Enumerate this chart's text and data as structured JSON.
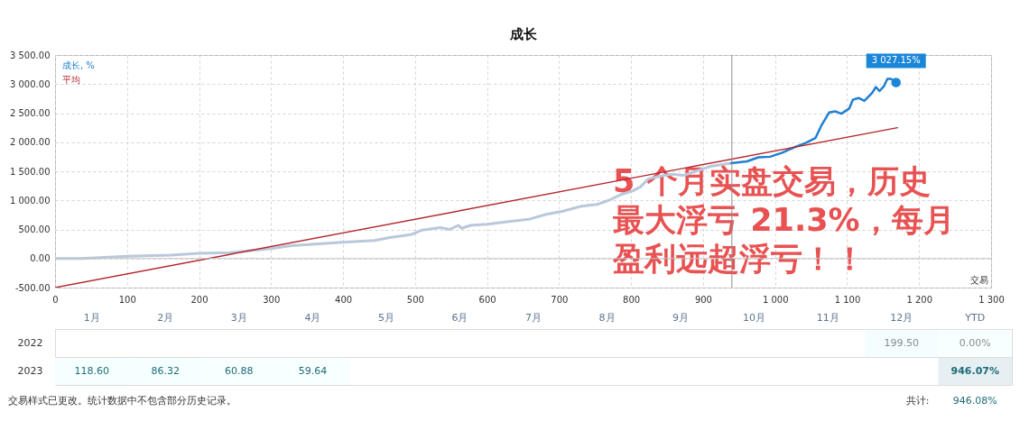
{
  "chart_data": [
    {
      "type": "line",
      "title": "成长",
      "xlabel": "交易",
      "xlim": [
        0,
        1300
      ],
      "ylim": [
        -500,
        3500
      ],
      "xticks": [
        0,
        100,
        200,
        300,
        400,
        500,
        600,
        700,
        800,
        900,
        {
          "value": 1000,
          "label": "1 000"
        },
        {
          "value": 1100,
          "label": "1 100"
        },
        {
          "value": 1200,
          "label": "1 200"
        },
        {
          "value": 1300,
          "label": "1 300"
        }
      ],
      "yticks": [
        {
          "value": -500,
          "label": "-500.00"
        },
        {
          "value": 0,
          "label": "0.00"
        },
        {
          "value": 500,
          "label": "500.00"
        },
        {
          "value": 1000,
          "label": "1 000.00"
        },
        {
          "value": 1500,
          "label": "1 500.00"
        },
        {
          "value": 2000,
          "label": "2 000.00"
        },
        {
          "value": 2500,
          "label": "2 500.00"
        },
        {
          "value": 3000,
          "label": "3 000.00"
        },
        {
          "value": 3500,
          "label": "3 500.00"
        }
      ],
      "grid": true,
      "legend": "top left",
      "line_style": "solid",
      "series": [
        {
          "color": "#b9c8da",
          "x": [
            0,
            37,
            100,
            161,
            200,
            244,
            300,
            328,
            399,
            444,
            465,
            494,
            510,
            535,
            548,
            560,
            565,
            577,
            600,
            633,
            660,
            682,
            704,
            731,
            753,
            769,
            786,
            802,
            813,
            824,
            846,
            857,
            873,
            890,
            912,
            939
          ],
          "values": [
            0,
            0,
            40,
            60,
            90,
            100,
            170,
            220,
            280,
            310,
            360,
            410,
            490,
            530,
            500,
            570,
            520,
            570,
            590,
            640,
            680,
            760,
            810,
            900,
            930,
            1000,
            1100,
            1160,
            1230,
            1370,
            1430,
            1450,
            1430,
            1500,
            1590,
            1640
          ]
        },
        {
          "name": "成长, %",
          "color": "#1f7fd0",
          "x": [
            939,
            961,
            977,
            993,
            1010,
            1026,
            1043,
            1056,
            1064,
            1075,
            1084,
            1092,
            1103,
            1108,
            1116,
            1124,
            1135,
            1140,
            1145,
            1151,
            1156,
            1161,
            1168
          ],
          "values": [
            1640,
            1670,
            1740,
            1750,
            1820,
            1910,
            1990,
            2070,
            2280,
            2510,
            2530,
            2490,
            2580,
            2730,
            2760,
            2710,
            2850,
            2950,
            2880,
            2960,
            3090,
            3090,
            3027.15
          ]
        },
        {
          "name": "平均",
          "type": "line",
          "color": "#b3262c",
          "x": [
            0,
            1170
          ],
          "values": [
            -500,
            2250
          ]
        }
      ],
      "ref_lines": [
        {
          "axis": "x",
          "value": 940,
          "color": "#8c8c8c"
        },
        {
          "axis": "y",
          "value": 0,
          "color": "#c4c4c4"
        }
      ],
      "annotations": [
        "5 个月实盘交易，历史最大浮亏 21.3%，每月盈利远超浮亏！！",
        {
          "text": "3 027.15%",
          "x": 1168,
          "y": 3027.15
        }
      ]
    },
    {
      "type": "heatmap",
      "categories": [
        "1月",
        "2月",
        "3月",
        "4月",
        "5月",
        "6月",
        "7月",
        "8月",
        "9月",
        "10月",
        "11月",
        "12月",
        "YTD"
      ],
      "y_categories": [
        "2022",
        "2023"
      ],
      "cells": [
        [
          null,
          null,
          null,
          null,
          null,
          null,
          null,
          null,
          null,
          null,
          null,
          199.5,
          0.0
        ],
        [
          118.6,
          86.32,
          60.88,
          59.64,
          null,
          null,
          null,
          null,
          null,
          null,
          null,
          null,
          946.07
        ]
      ],
      "cell_labels": [
        [
          null,
          null,
          null,
          null,
          null,
          null,
          null,
          null,
          null,
          null,
          null,
          "199.50",
          "0.00%"
        ],
        [
          "118.60",
          "86.32",
          "60.88",
          "59.64",
          null,
          null,
          null,
          null,
          null,
          null,
          null,
          null,
          "946.07%"
        ]
      ],
      "annotations": [
        "交易样式已更改。统计数据中不包含部分历史记录。",
        "共计:",
        "946.08%"
      ]
    }
  ]
}
